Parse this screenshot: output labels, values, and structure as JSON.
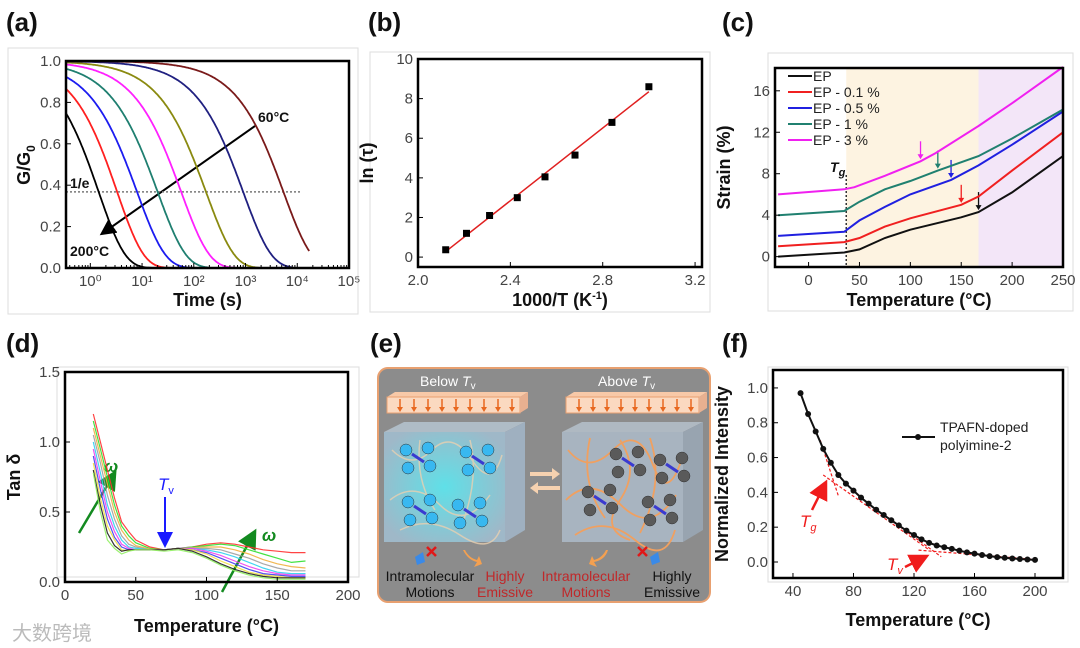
{
  "panel_labels": [
    "(a)",
    "(b)",
    "(c)",
    "(d)",
    "(e)",
    "(f)"
  ],
  "watermark": "大数跨境",
  "chart_data": [
    {
      "id": "a",
      "type": "line",
      "xlabel": "Time (s)",
      "ylabel_main": "G/G",
      "ylabel_sub": "0",
      "xscale": "log",
      "xlim_log10": [
        -0.47,
        5
      ],
      "ylim": [
        0,
        1.0
      ],
      "xticks_log10": [
        0,
        1,
        2,
        3,
        4,
        5
      ],
      "xtick_labels": [
        "10⁰",
        "10¹",
        "10²",
        "10³",
        "10⁴",
        "10⁵"
      ],
      "yticks": [
        0,
        0.2,
        0.4,
        0.6,
        0.8,
        1.0
      ],
      "ytick_labels": [
        "0.0",
        "0.2",
        "0.4",
        "0.6",
        "0.8",
        "1.0"
      ],
      "reference_line": {
        "label": "1/e",
        "y": 0.3679
      },
      "annotations": {
        "high": "200°C",
        "low": "60°C"
      },
      "series": [
        {
          "color": "#000000",
          "tau": 1.45,
          "beta": 0.85,
          "t_end": 40
        },
        {
          "color": "#ff2020",
          "tau": 3.3,
          "beta": 0.85,
          "t_end": 100
        },
        {
          "color": "#1c1cf0",
          "tau": 8,
          "beta": 0.8,
          "t_end": 150
        },
        {
          "color": "#1f7f70",
          "tau": 20,
          "beta": 0.8,
          "t_end": 200
        },
        {
          "color": "#ff20ff",
          "tau": 57,
          "beta": 0.8,
          "t_end": 700
        },
        {
          "color": "#8a8a10",
          "tau": 172,
          "beta": 0.8,
          "t_end": 1800
        },
        {
          "color": "#202080",
          "tau": 900,
          "beta": 0.8,
          "t_end": 8000
        },
        {
          "color": "#7a1a1a",
          "tau": 5400,
          "beta": 0.8,
          "t_end": 17000
        }
      ]
    },
    {
      "id": "b",
      "type": "scatter",
      "xlabel_main": "1000/T (K",
      "xlabel_sup": "-1",
      "xlabel_end": ")",
      "ylabel": "ln (τ)",
      "xlim": [
        2.0,
        3.23
      ],
      "ylim": [
        -0.5,
        10
      ],
      "xticks": [
        2.0,
        2.4,
        2.8,
        3.2
      ],
      "xtick_labels": [
        "2.0",
        "2.4",
        "2.8",
        "3.2"
      ],
      "yticks": [
        0,
        2,
        4,
        6,
        8,
        10
      ],
      "ytick_labels": [
        "0",
        "2",
        "4",
        "6",
        "8",
        "10"
      ],
      "x": [
        2.12,
        2.21,
        2.31,
        2.43,
        2.55,
        2.68,
        2.84,
        3.0
      ],
      "y": [
        0.37,
        1.2,
        2.1,
        3.0,
        4.05,
        5.15,
        6.8,
        8.6
      ],
      "fit": {
        "color": "#e02020",
        "x": [
          2.12,
          3.0
        ],
        "y": [
          0.28,
          8.35
        ]
      }
    },
    {
      "id": "c",
      "type": "line",
      "xlabel": "Temperature (°C)",
      "ylabel": "Strain (%)",
      "xlim": [
        -33,
        250
      ],
      "ylim": [
        -1,
        18.2
      ],
      "xticks": [
        0,
        50,
        100,
        150,
        200,
        250
      ],
      "xtick_labels": [
        "0",
        "50",
        "100",
        "150",
        "200",
        "250"
      ],
      "yticks": [
        0,
        4,
        8,
        12,
        16
      ],
      "ytick_labels": [
        "0",
        "4",
        "8",
        "12",
        "16"
      ],
      "regions": [
        {
          "from": 37,
          "to": 167,
          "color": "#fdf3e1"
        },
        {
          "from": 167,
          "to": 250,
          "color": "#f3e6f8"
        }
      ],
      "Tg": {
        "x": 37,
        "label": "T",
        "sub": "g"
      },
      "Tv_label": {
        "label": "T",
        "sub": "v"
      },
      "legend_position": "top-left",
      "series": [
        {
          "name": "EP",
          "color": "#111111",
          "tv": 167,
          "points": [
            [
              -30,
              0
            ],
            [
              35,
              0.4
            ],
            [
              50,
              0.7
            ],
            [
              75,
              1.8
            ],
            [
              100,
              2.6
            ],
            [
              150,
              3.8
            ],
            [
              167,
              4.3
            ],
            [
              200,
              6.2
            ],
            [
              250,
              9.7
            ]
          ]
        },
        {
          "name": "EP - 0.1 %",
          "color": "#f02020",
          "tv": 150,
          "points": [
            [
              -30,
              1
            ],
            [
              35,
              1.4
            ],
            [
              50,
              1.8
            ],
            [
              75,
              2.9
            ],
            [
              100,
              3.7
            ],
            [
              150,
              5.0
            ],
            [
              167,
              5.8
            ],
            [
              200,
              8.3
            ],
            [
              250,
              12
            ]
          ]
        },
        {
          "name": "EP - 0.5 %",
          "color": "#2020e0",
          "tv": 140,
          "points": [
            [
              -30,
              2
            ],
            [
              35,
              2.4
            ],
            [
              50,
              3.5
            ],
            [
              75,
              4.8
            ],
            [
              100,
              6
            ],
            [
              140,
              7.4
            ],
            [
              167,
              8.8
            ],
            [
              200,
              10.8
            ],
            [
              250,
              14
            ]
          ]
        },
        {
          "name": "EP - 1 %",
          "color": "#208070",
          "tv": 127,
          "points": [
            [
              -30,
              4
            ],
            [
              35,
              4.4
            ],
            [
              50,
              5.3
            ],
            [
              75,
              6.5
            ],
            [
              100,
              7.3
            ],
            [
              127,
              8.3
            ],
            [
              167,
              9.7
            ],
            [
              200,
              11.4
            ],
            [
              250,
              14.2
            ]
          ]
        },
        {
          "name": "EP - 3 %",
          "color": "#f020f0",
          "tv": 110,
          "points": [
            [
              -30,
              6
            ],
            [
              35,
              6.5
            ],
            [
              45,
              6.7
            ],
            [
              75,
              7.8
            ],
            [
              110,
              9.2
            ],
            [
              125,
              10
            ],
            [
              167,
              12.6
            ],
            [
              200,
              14.8
            ],
            [
              250,
              18.3
            ]
          ]
        }
      ]
    },
    {
      "id": "d",
      "type": "line",
      "xlabel": "Temperature (°C)",
      "ylabel": "Tan δ",
      "xlim": [
        0,
        200
      ],
      "ylim": [
        0,
        1.5
      ],
      "xticks": [
        0,
        50,
        100,
        150,
        200
      ],
      "xtick_labels": [
        "0",
        "50",
        "100",
        "150",
        "200"
      ],
      "yticks": [
        0,
        0.5,
        1.0,
        1.5
      ],
      "ytick_labels": [
        "0.0",
        "0.5",
        "1.0",
        "1.5"
      ],
      "omega_label": "ω",
      "Tv_label": {
        "label": "T",
        "sub": "v",
        "x": 70
      },
      "x": [
        20,
        25,
        30,
        35,
        40,
        45,
        50,
        60,
        70,
        80,
        90,
        100,
        110,
        120,
        130,
        140,
        150,
        160,
        170
      ],
      "series": [
        {
          "color": "#ff3030",
          "y": [
            1.2,
            1.0,
            0.8,
            0.6,
            0.43,
            0.36,
            0.3,
            0.25,
            0.23,
            0.24,
            0.25,
            0.27,
            0.28,
            0.27,
            0.25,
            0.23,
            0.22,
            0.21,
            0.21
          ]
        },
        {
          "color": "#30e030",
          "y": [
            1.15,
            0.95,
            0.75,
            0.55,
            0.4,
            0.33,
            0.28,
            0.24,
            0.23,
            0.24,
            0.25,
            0.26,
            0.27,
            0.26,
            0.23,
            0.2,
            0.17,
            0.14,
            0.15
          ]
        },
        {
          "color": "#f0b040",
          "y": [
            1.1,
            0.9,
            0.7,
            0.5,
            0.37,
            0.3,
            0.26,
            0.235,
            0.23,
            0.24,
            0.245,
            0.25,
            0.25,
            0.23,
            0.2,
            0.16,
            0.13,
            0.11,
            0.1
          ]
        },
        {
          "color": "#a0a0a0",
          "y": [
            1.05,
            0.85,
            0.62,
            0.45,
            0.33,
            0.27,
            0.25,
            0.23,
            0.23,
            0.24,
            0.24,
            0.24,
            0.23,
            0.2,
            0.17,
            0.13,
            0.1,
            0.08,
            0.08
          ]
        },
        {
          "color": "#30d0f0",
          "y": [
            1.0,
            0.78,
            0.55,
            0.4,
            0.3,
            0.25,
            0.24,
            0.23,
            0.23,
            0.24,
            0.24,
            0.23,
            0.21,
            0.18,
            0.14,
            0.1,
            0.07,
            0.06,
            0.06
          ]
        },
        {
          "color": "#f040f0",
          "y": [
            0.95,
            0.72,
            0.5,
            0.36,
            0.27,
            0.24,
            0.23,
            0.23,
            0.23,
            0.24,
            0.24,
            0.22,
            0.19,
            0.15,
            0.11,
            0.08,
            0.06,
            0.05,
            0.05
          ]
        },
        {
          "color": "#4040f0",
          "y": [
            0.9,
            0.66,
            0.45,
            0.32,
            0.25,
            0.23,
            0.23,
            0.23,
            0.23,
            0.24,
            0.23,
            0.21,
            0.17,
            0.13,
            0.09,
            0.06,
            0.05,
            0.04,
            0.04
          ]
        },
        {
          "color": "#f0e040",
          "y": [
            0.85,
            0.6,
            0.4,
            0.3,
            0.23,
            0.225,
            0.23,
            0.23,
            0.23,
            0.24,
            0.23,
            0.2,
            0.15,
            0.11,
            0.07,
            0.05,
            0.04,
            0.03,
            0.03
          ]
        },
        {
          "color": "#202020",
          "y": [
            0.8,
            0.55,
            0.35,
            0.26,
            0.22,
            0.23,
            0.23,
            0.23,
            0.23,
            0.24,
            0.22,
            0.18,
            0.13,
            0.09,
            0.06,
            0.04,
            0.03,
            0.03,
            0.03
          ]
        },
        {
          "color": "#90f060",
          "y": [
            0.78,
            0.5,
            0.3,
            0.24,
            0.2,
            0.22,
            0.23,
            0.23,
            0.22,
            0.23,
            0.21,
            0.17,
            0.12,
            0.08,
            0.05,
            0.03,
            0.02,
            0.02,
            0.02
          ]
        }
      ]
    },
    {
      "id": "f",
      "type": "line",
      "xlabel": "Temperature (°C)",
      "ylabel": "Normalized Intensity",
      "xlim": [
        26.8,
        218.5
      ],
      "ylim": [
        -0.092,
        1.103
      ],
      "xticks": [
        40,
        80,
        120,
        160,
        200
      ],
      "xtick_labels": [
        "40",
        "80",
        "120",
        "160",
        "200"
      ],
      "yticks": [
        0,
        0.2,
        0.4,
        0.6,
        0.8,
        1.0
      ],
      "ytick_labels": [
        "0.0",
        "0.2",
        "0.4",
        "0.6",
        "0.8",
        "1.0"
      ],
      "legend": [
        "TPAFN-doped",
        "polyimine-2"
      ],
      "legend_position": "right",
      "Tg": {
        "label": "T",
        "sub": "g",
        "x": 64
      },
      "Tv": {
        "label": "T",
        "sub": "v",
        "x": 131
      },
      "x": [
        45,
        50,
        55,
        60,
        65,
        70,
        75,
        80,
        85,
        90,
        95,
        100,
        105,
        110,
        115,
        120,
        125,
        130,
        135,
        140,
        145,
        150,
        155,
        160,
        165,
        170,
        175,
        180,
        185,
        190,
        195,
        200
      ],
      "y": [
        0.97,
        0.85,
        0.75,
        0.65,
        0.57,
        0.5,
        0.45,
        0.41,
        0.37,
        0.335,
        0.3,
        0.27,
        0.24,
        0.21,
        0.18,
        0.155,
        0.13,
        0.11,
        0.095,
        0.085,
        0.075,
        0.065,
        0.055,
        0.048,
        0.04,
        0.034,
        0.028,
        0.024,
        0.02,
        0.017,
        0.014,
        0.012
      ]
    }
  ],
  "diagram_e": {
    "left_title": "Below ",
    "right_title": "Above ",
    "T": "T",
    "v": "v",
    "captions": [
      {
        "line1": "Intramolecular",
        "line2": "Motions",
        "color": "#111111"
      },
      {
        "line1": "Highly",
        "line2": "Emissive",
        "color": "#c0282a"
      },
      {
        "line1": "Intramolecular",
        "line2": "Motions",
        "color": "#c0282a"
      },
      {
        "line1": "Highly",
        "line2": "Emissive",
        "color": "#111111"
      }
    ]
  }
}
